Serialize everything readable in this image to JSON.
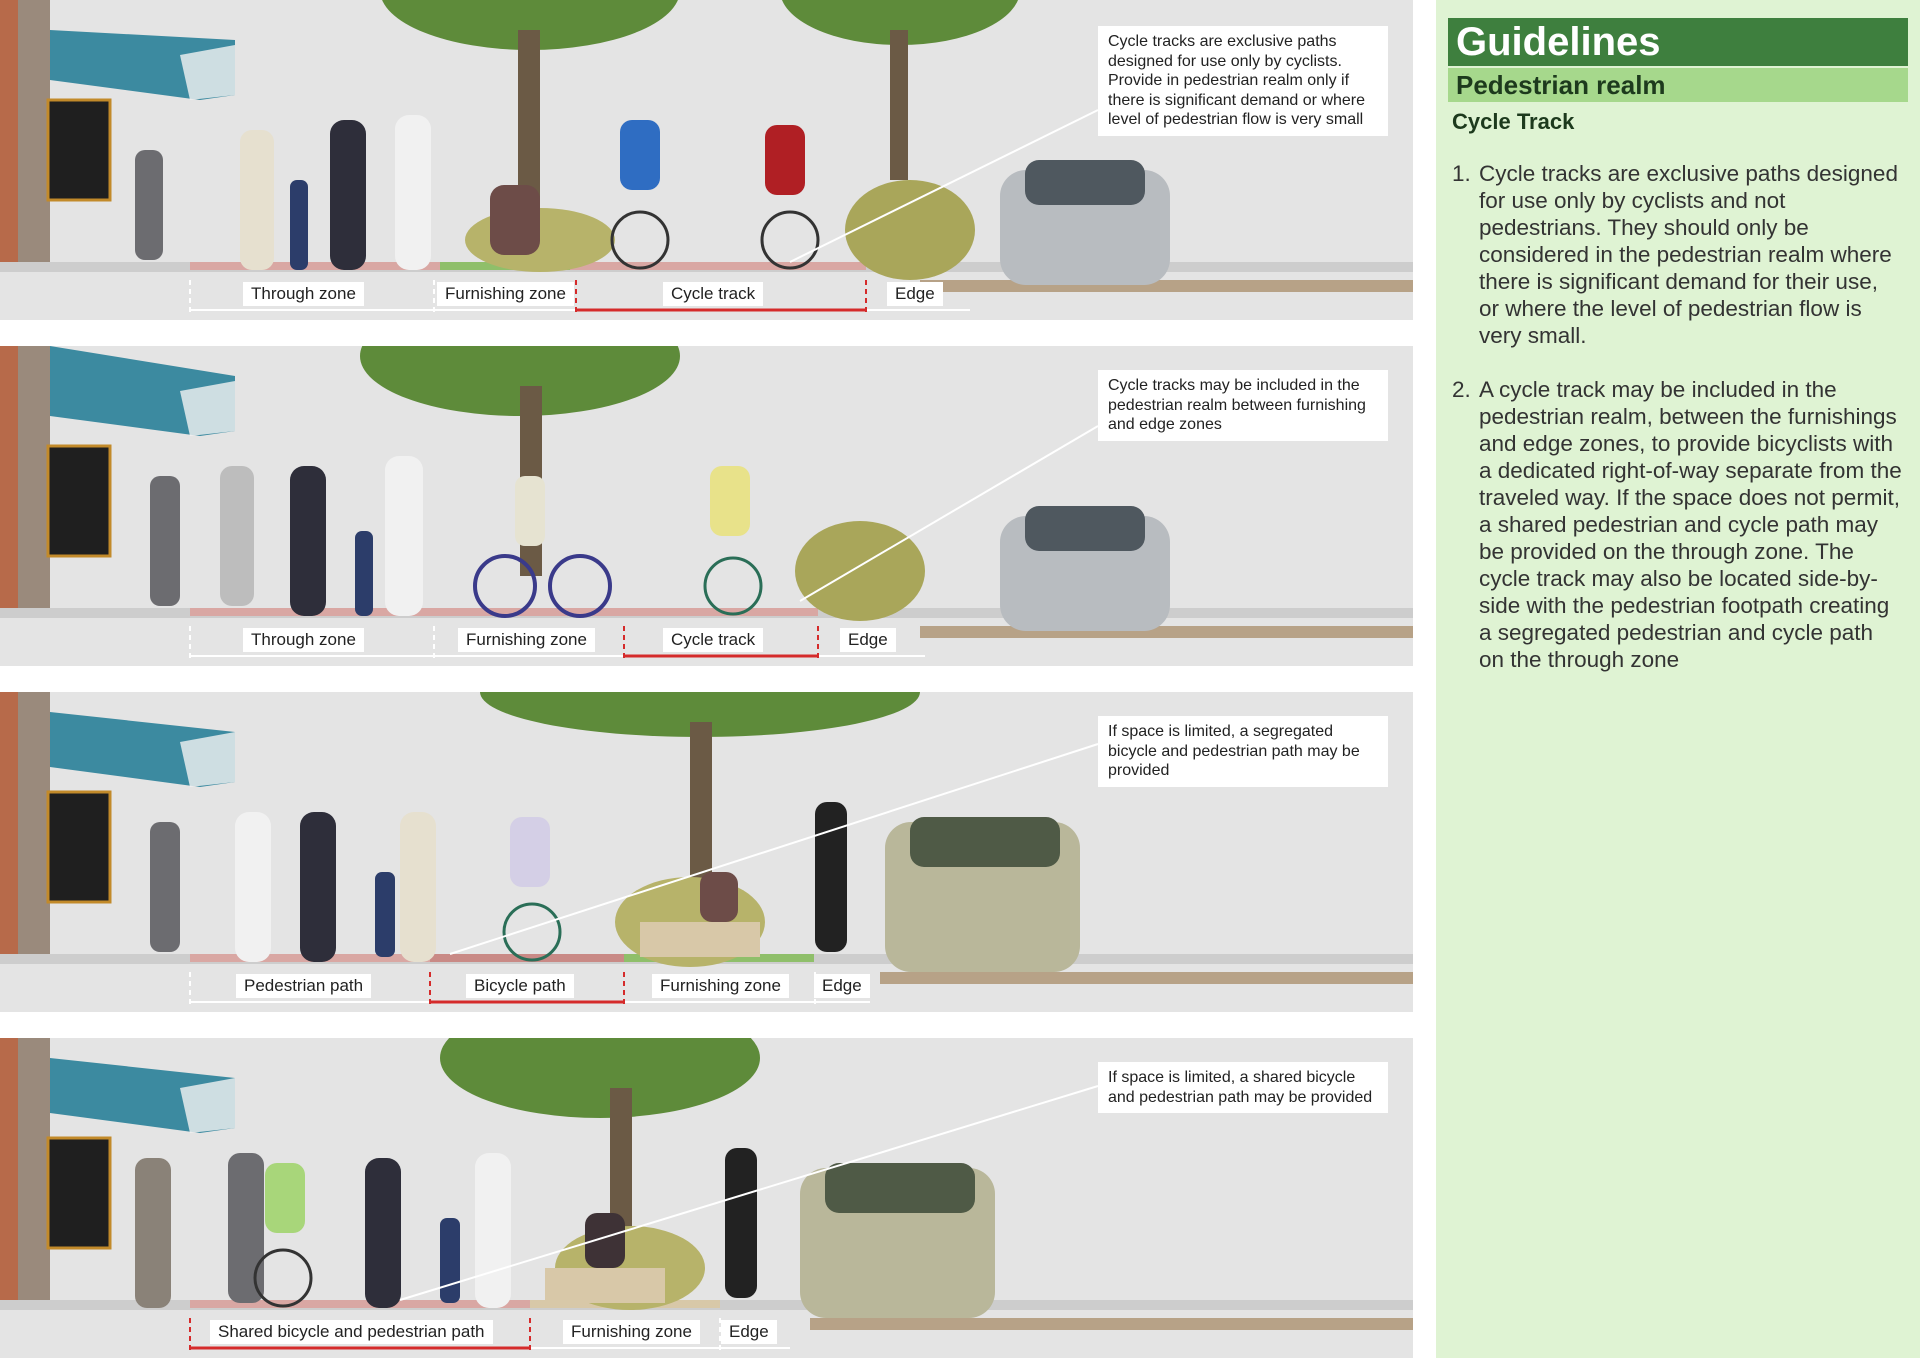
{
  "panels": [
    {
      "callout": "Cycle tracks are exclusive paths designed for use only by cyclists. Provide in pedestrian realm only if there is significant demand or where level of pedestrian flow is very small",
      "zones": [
        {
          "label": "Through zone",
          "highlight": false
        },
        {
          "label": "Furnishing zone",
          "highlight": false
        },
        {
          "label": "Cycle track",
          "highlight": true
        },
        {
          "label": "Edge",
          "highlight": false
        }
      ]
    },
    {
      "callout": "Cycle tracks may be included in the pedestrian realm between furnishing and edge zones",
      "zones": [
        {
          "label": "Through zone",
          "highlight": false
        },
        {
          "label": "Furnishing zone",
          "highlight": false
        },
        {
          "label": "Cycle track",
          "highlight": true
        },
        {
          "label": "Edge",
          "highlight": false
        }
      ]
    },
    {
      "callout": "If space is limited, a segregated bicycle and pedestrian path may be provided",
      "zones": [
        {
          "label": "Pedestrian path",
          "highlight": false
        },
        {
          "label": "Bicycle path",
          "highlight": true
        },
        {
          "label": "Furnishing zone",
          "highlight": false
        },
        {
          "label": "Edge",
          "highlight": false
        }
      ]
    },
    {
      "callout": "If space is limited, a shared bicycle and pedestrian path may be provided",
      "zones": [
        {
          "label": "Shared bicycle and pedestrian path",
          "highlight": true
        },
        {
          "label": "Furnishing zone",
          "highlight": false
        },
        {
          "label": "Edge",
          "highlight": false
        }
      ]
    }
  ],
  "sidebar": {
    "title": "Guidelines",
    "subtitle": "Pedestrian realm",
    "heading": "Cycle Track",
    "items": [
      {
        "num": "1.",
        "text": "Cycle tracks are exclusive paths designed for use only by cyclists and not pedestrians.  They should only be considered in the pedestrian realm where there is significant demand for their use, or where the level of pedestrian flow is very small."
      },
      {
        "num": "2.",
        "text": "A cycle track may be included in the pedestrian realm, between the furnishings and edge zones, to provide bicyclists with a dedicated right-of-way separate from the traveled way. If the space does not permit, a shared pedestrian and cycle path may be provided on the through zone.  The cycle track may also be located side-by-side with the pedestrian footpath creating a segregated pedestrian and cycle path on the through zone"
      }
    ]
  },
  "colors": {
    "sidebar_bg": "#dff3d3",
    "title_bg": "#3e7f3e",
    "subtitle_bg": "#a6d88c",
    "cycle_surface": "#d9a7a3",
    "highlight_line": "#d52b2b"
  }
}
